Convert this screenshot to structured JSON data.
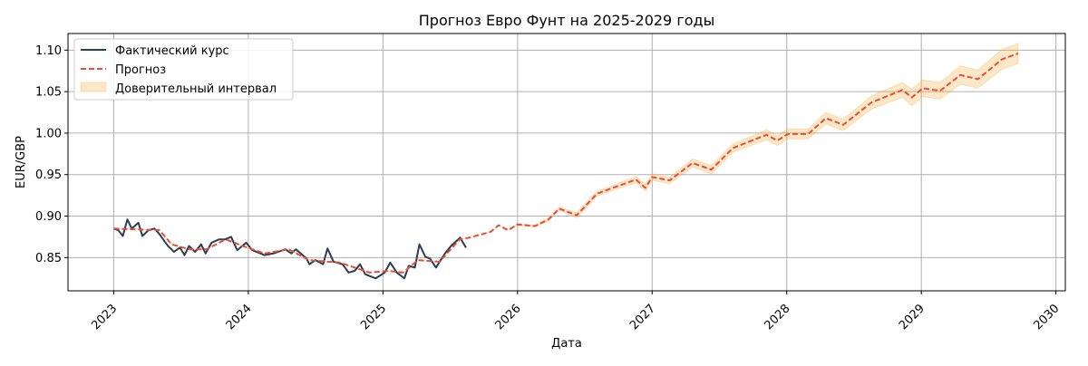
{
  "chart_data": {
    "type": "line",
    "title": "Прогноз Евро Фунт на 2025-2029 годы",
    "xlabel": "Дата",
    "ylabel": "EUR/GBP",
    "xlim": [
      2022.66,
      2030.07
    ],
    "ylim": [
      0.81,
      1.12
    ],
    "xticks": [
      2023,
      2024,
      2025,
      2026,
      2027,
      2028,
      2029,
      2030
    ],
    "xtick_labels": [
      "2023",
      "2024",
      "2025",
      "2026",
      "2027",
      "2028",
      "2029",
      "2030"
    ],
    "yticks": [
      0.85,
      0.9,
      0.95,
      1.0,
      1.05,
      1.1
    ],
    "ytick_labels": [
      "0.85",
      "0.90",
      "0.95",
      "1.00",
      "1.05",
      "1.10"
    ],
    "grid": true,
    "legend_position": "top-left",
    "legend": [
      "Фактический курс",
      "Прогноз",
      "Доверительный интервал"
    ],
    "series": [
      {
        "name": "Фактический курс",
        "color": "#2c3e50",
        "style": "solid",
        "x": [
          2023.0,
          2023.034,
          2023.067,
          2023.101,
          2023.134,
          2023.183,
          2023.213,
          2023.257,
          2023.302,
          2023.336,
          2023.403,
          2023.447,
          2023.492,
          2023.526,
          2023.559,
          2023.604,
          2023.649,
          2023.682,
          2023.727,
          2023.783,
          2023.828,
          2023.872,
          2023.917,
          2023.984,
          2024.029,
          2024.119,
          2024.186,
          2024.275,
          2024.32,
          2024.353,
          2024.432,
          2024.454,
          2024.499,
          2024.555,
          2024.588,
          2024.633,
          2024.7,
          2024.745,
          2024.79,
          2024.83,
          2024.868,
          2024.946,
          2025.013,
          2025.054,
          2025.103,
          2025.159,
          2025.192,
          2025.237,
          2025.271,
          2025.315,
          2025.349,
          2025.394,
          2025.461,
          2025.506,
          2025.573,
          2025.617
        ],
        "y": [
          0.885,
          0.883,
          0.876,
          0.896,
          0.885,
          0.892,
          0.876,
          0.883,
          0.885,
          0.879,
          0.864,
          0.857,
          0.862,
          0.853,
          0.864,
          0.857,
          0.866,
          0.855,
          0.868,
          0.872,
          0.872,
          0.875,
          0.859,
          0.868,
          0.859,
          0.853,
          0.855,
          0.86,
          0.855,
          0.86,
          0.849,
          0.842,
          0.847,
          0.842,
          0.861,
          0.845,
          0.842,
          0.832,
          0.834,
          0.842,
          0.83,
          0.825,
          0.832,
          0.844,
          0.832,
          0.825,
          0.84,
          0.838,
          0.866,
          0.851,
          0.849,
          0.838,
          0.855,
          0.864,
          0.874,
          0.862
        ]
      },
      {
        "name": "Прогноз",
        "color": "#e74c3c",
        "style": "dashed",
        "x": [
          2023.0,
          2023.34,
          2023.43,
          2023.56,
          2023.69,
          2023.83,
          2023.96,
          2024.12,
          2024.3,
          2024.45,
          2024.68,
          2024.9,
          2025.04,
          2025.15,
          2025.26,
          2025.42,
          2025.57,
          2025.64,
          2025.8,
          2025.86,
          2025.93,
          2026.0,
          2026.13,
          2026.23,
          2026.31,
          2026.44,
          2026.59,
          2026.69,
          2026.88,
          2026.95,
          2027.0,
          2027.13,
          2027.3,
          2027.44,
          2027.6,
          2027.85,
          2027.93,
          2028.01,
          2028.16,
          2028.29,
          2028.42,
          2028.63,
          2028.86,
          2028.93,
          2029.01,
          2029.14,
          2029.29,
          2029.42,
          2029.6,
          2029.72
        ],
        "y": [
          0.885,
          0.883,
          0.866,
          0.86,
          0.86,
          0.872,
          0.864,
          0.855,
          0.86,
          0.847,
          0.844,
          0.832,
          0.834,
          0.832,
          0.847,
          0.845,
          0.872,
          0.874,
          0.881,
          0.889,
          0.883,
          0.89,
          0.888,
          0.896,
          0.909,
          0.901,
          0.927,
          0.933,
          0.944,
          0.934,
          0.947,
          0.943,
          0.964,
          0.956,
          0.982,
          0.998,
          0.991,
          0.999,
          0.999,
          1.018,
          1.01,
          1.037,
          1.052,
          1.043,
          1.054,
          1.051,
          1.07,
          1.065,
          1.089,
          1.096
        ]
      }
    ],
    "confidence_interval": {
      "name": "Доверительный интервал",
      "color": "#f5b041",
      "opacity": 0.3,
      "half_width": [
        0,
        0,
        0,
        0,
        0,
        0,
        0,
        0,
        0,
        0,
        0,
        0,
        0,
        0,
        0,
        0,
        0,
        0,
        0,
        0,
        0,
        0.001,
        0.001,
        0.002,
        0.002,
        0.003,
        0.003,
        0.003,
        0.004,
        0.004,
        0.004,
        0.004,
        0.005,
        0.005,
        0.005,
        0.006,
        0.006,
        0.006,
        0.006,
        0.007,
        0.007,
        0.008,
        0.009,
        0.01,
        0.01,
        0.01,
        0.011,
        0.011,
        0.012,
        0.012
      ]
    }
  }
}
